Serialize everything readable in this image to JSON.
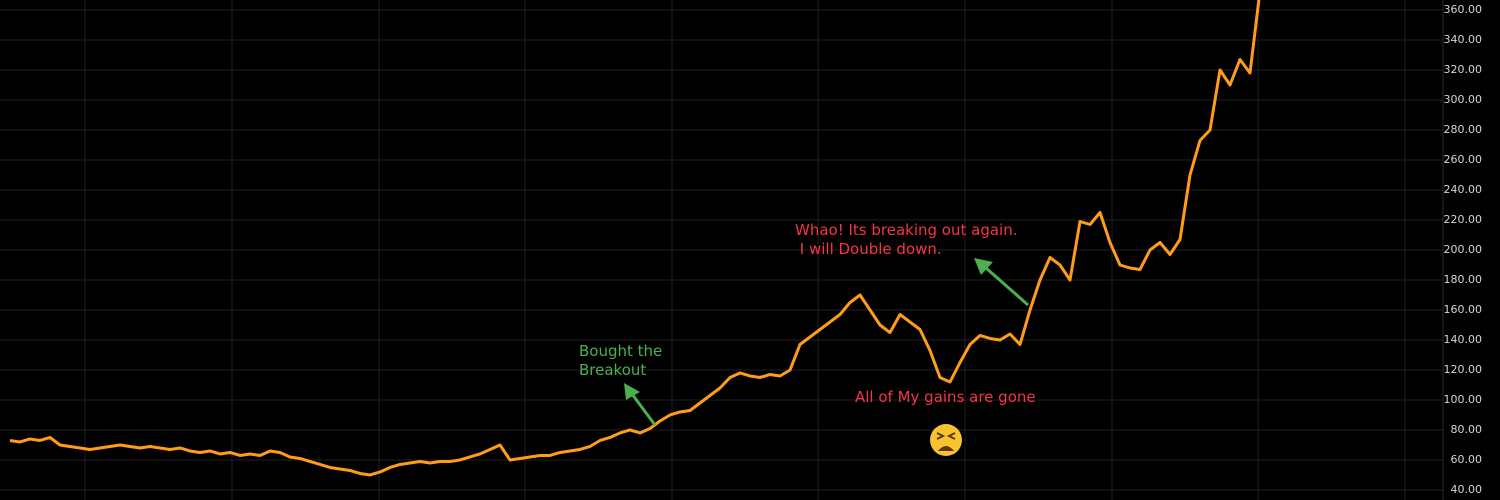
{
  "chart_data": {
    "type": "line",
    "series": [
      {
        "color": "#ff9c1a",
        "values": [
          73,
          72,
          74,
          73,
          75,
          70,
          69,
          68,
          67,
          68,
          69,
          70,
          69,
          68,
          69,
          68,
          67,
          68,
          66,
          65,
          66,
          64,
          65,
          63,
          64,
          63,
          66,
          65,
          62,
          61,
          59,
          57,
          55,
          54,
          53,
          51,
          50,
          52,
          55,
          57,
          58,
          59,
          58,
          59,
          59,
          60,
          62,
          64,
          67,
          70,
          60,
          61,
          62,
          63,
          63,
          65,
          66,
          67,
          69,
          73,
          75,
          78,
          80,
          78,
          81,
          86,
          90,
          92,
          93,
          98,
          103,
          108,
          115,
          118,
          116,
          115,
          117,
          116,
          120,
          137,
          142,
          147,
          152,
          157,
          165,
          170,
          160,
          150,
          145,
          157,
          152,
          147,
          133,
          115,
          112,
          125,
          137,
          143,
          141,
          140,
          144,
          137,
          160,
          180,
          195,
          190,
          180,
          219,
          217,
          225,
          205,
          190,
          188,
          187,
          200,
          205,
          197,
          207,
          250,
          273,
          280,
          320,
          310,
          327,
          318,
          373
        ]
      }
    ],
    "ylim": [
      33.33,
      366.67
    ],
    "yticks": [
      {
        "value": 40,
        "label": "40.00"
      },
      {
        "value": 60,
        "label": "60.00"
      },
      {
        "value": 80,
        "label": "80.00"
      },
      {
        "value": 100,
        "label": "100.00"
      },
      {
        "value": 120,
        "label": "120.00"
      },
      {
        "value": 140,
        "label": "140.00"
      },
      {
        "value": 160,
        "label": "160.00"
      },
      {
        "value": 180,
        "label": "180.00"
      },
      {
        "value": 200,
        "label": "200.00"
      },
      {
        "value": 220,
        "label": "220.00"
      },
      {
        "value": 240,
        "label": "240.00"
      },
      {
        "value": 260,
        "label": "260.00"
      },
      {
        "value": 280,
        "label": "280.00"
      },
      {
        "value": 300,
        "label": "300.00"
      },
      {
        "value": 320,
        "label": "320.00"
      },
      {
        "value": 340,
        "label": "340.00"
      },
      {
        "value": 360,
        "label": "360.00"
      }
    ],
    "grid": true,
    "annotations": [
      {
        "lines": [
          "Bought the",
          "Breakout"
        ],
        "color": "#4caf50"
      },
      {
        "lines": [
          "Whao! Its breaking out again.",
          " I will Double down."
        ],
        "color": "#f23645"
      },
      {
        "lines": [
          "All of My gains are gone"
        ],
        "color": "#f23645"
      }
    ]
  }
}
